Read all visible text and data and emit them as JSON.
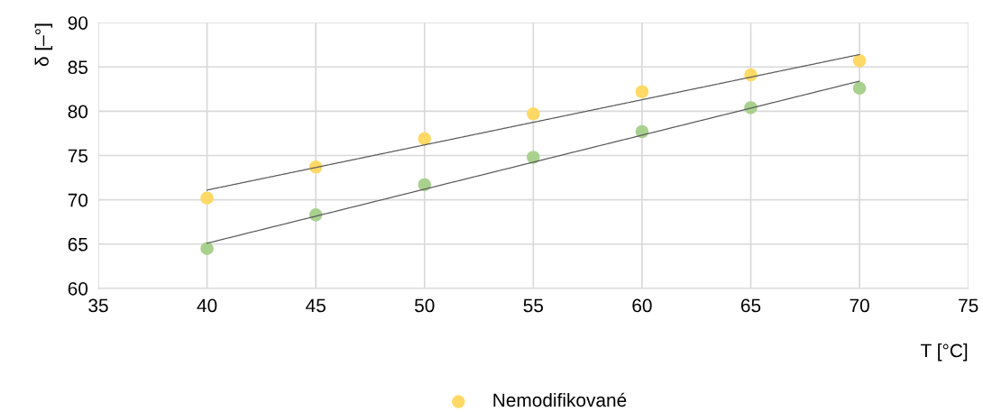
{
  "chart_data": {
    "type": "scatter",
    "xlabel": "T [°C]",
    "ylabel": "δ [–°]",
    "xlim": [
      35,
      75
    ],
    "xticks": [
      35,
      40,
      45,
      50,
      55,
      60,
      65,
      70,
      75
    ],
    "ylim": [
      60,
      90
    ],
    "yticks": [
      60,
      65,
      70,
      75,
      80,
      85,
      90
    ],
    "grid": true,
    "legend": "bottom",
    "marker": "circle",
    "series": [
      {
        "name": "Nemodifikované",
        "color": "#ffd966",
        "x": [
          40,
          45,
          50,
          55,
          60,
          65,
          70
        ],
        "values": [
          70.2,
          73.7,
          76.9,
          79.7,
          82.2,
          84.1,
          85.7
        ]
      },
      {
        "color": "#a9d18e",
        "x": [
          40,
          45,
          50,
          55,
          60,
          65,
          70
        ],
        "values": [
          64.5,
          68.3,
          71.7,
          74.8,
          77.7,
          80.4,
          82.6
        ]
      },
      {
        "type": "line",
        "color": "#595959",
        "line_style": "dotted",
        "marker": "none",
        "x": [
          40,
          70
        ],
        "values": [
          71.1,
          86.4
        ]
      },
      {
        "type": "line",
        "color": "#595959",
        "line_style": "dotted",
        "marker": "none",
        "x": [
          40,
          70
        ],
        "values": [
          65.1,
          83.4
        ]
      }
    ]
  }
}
